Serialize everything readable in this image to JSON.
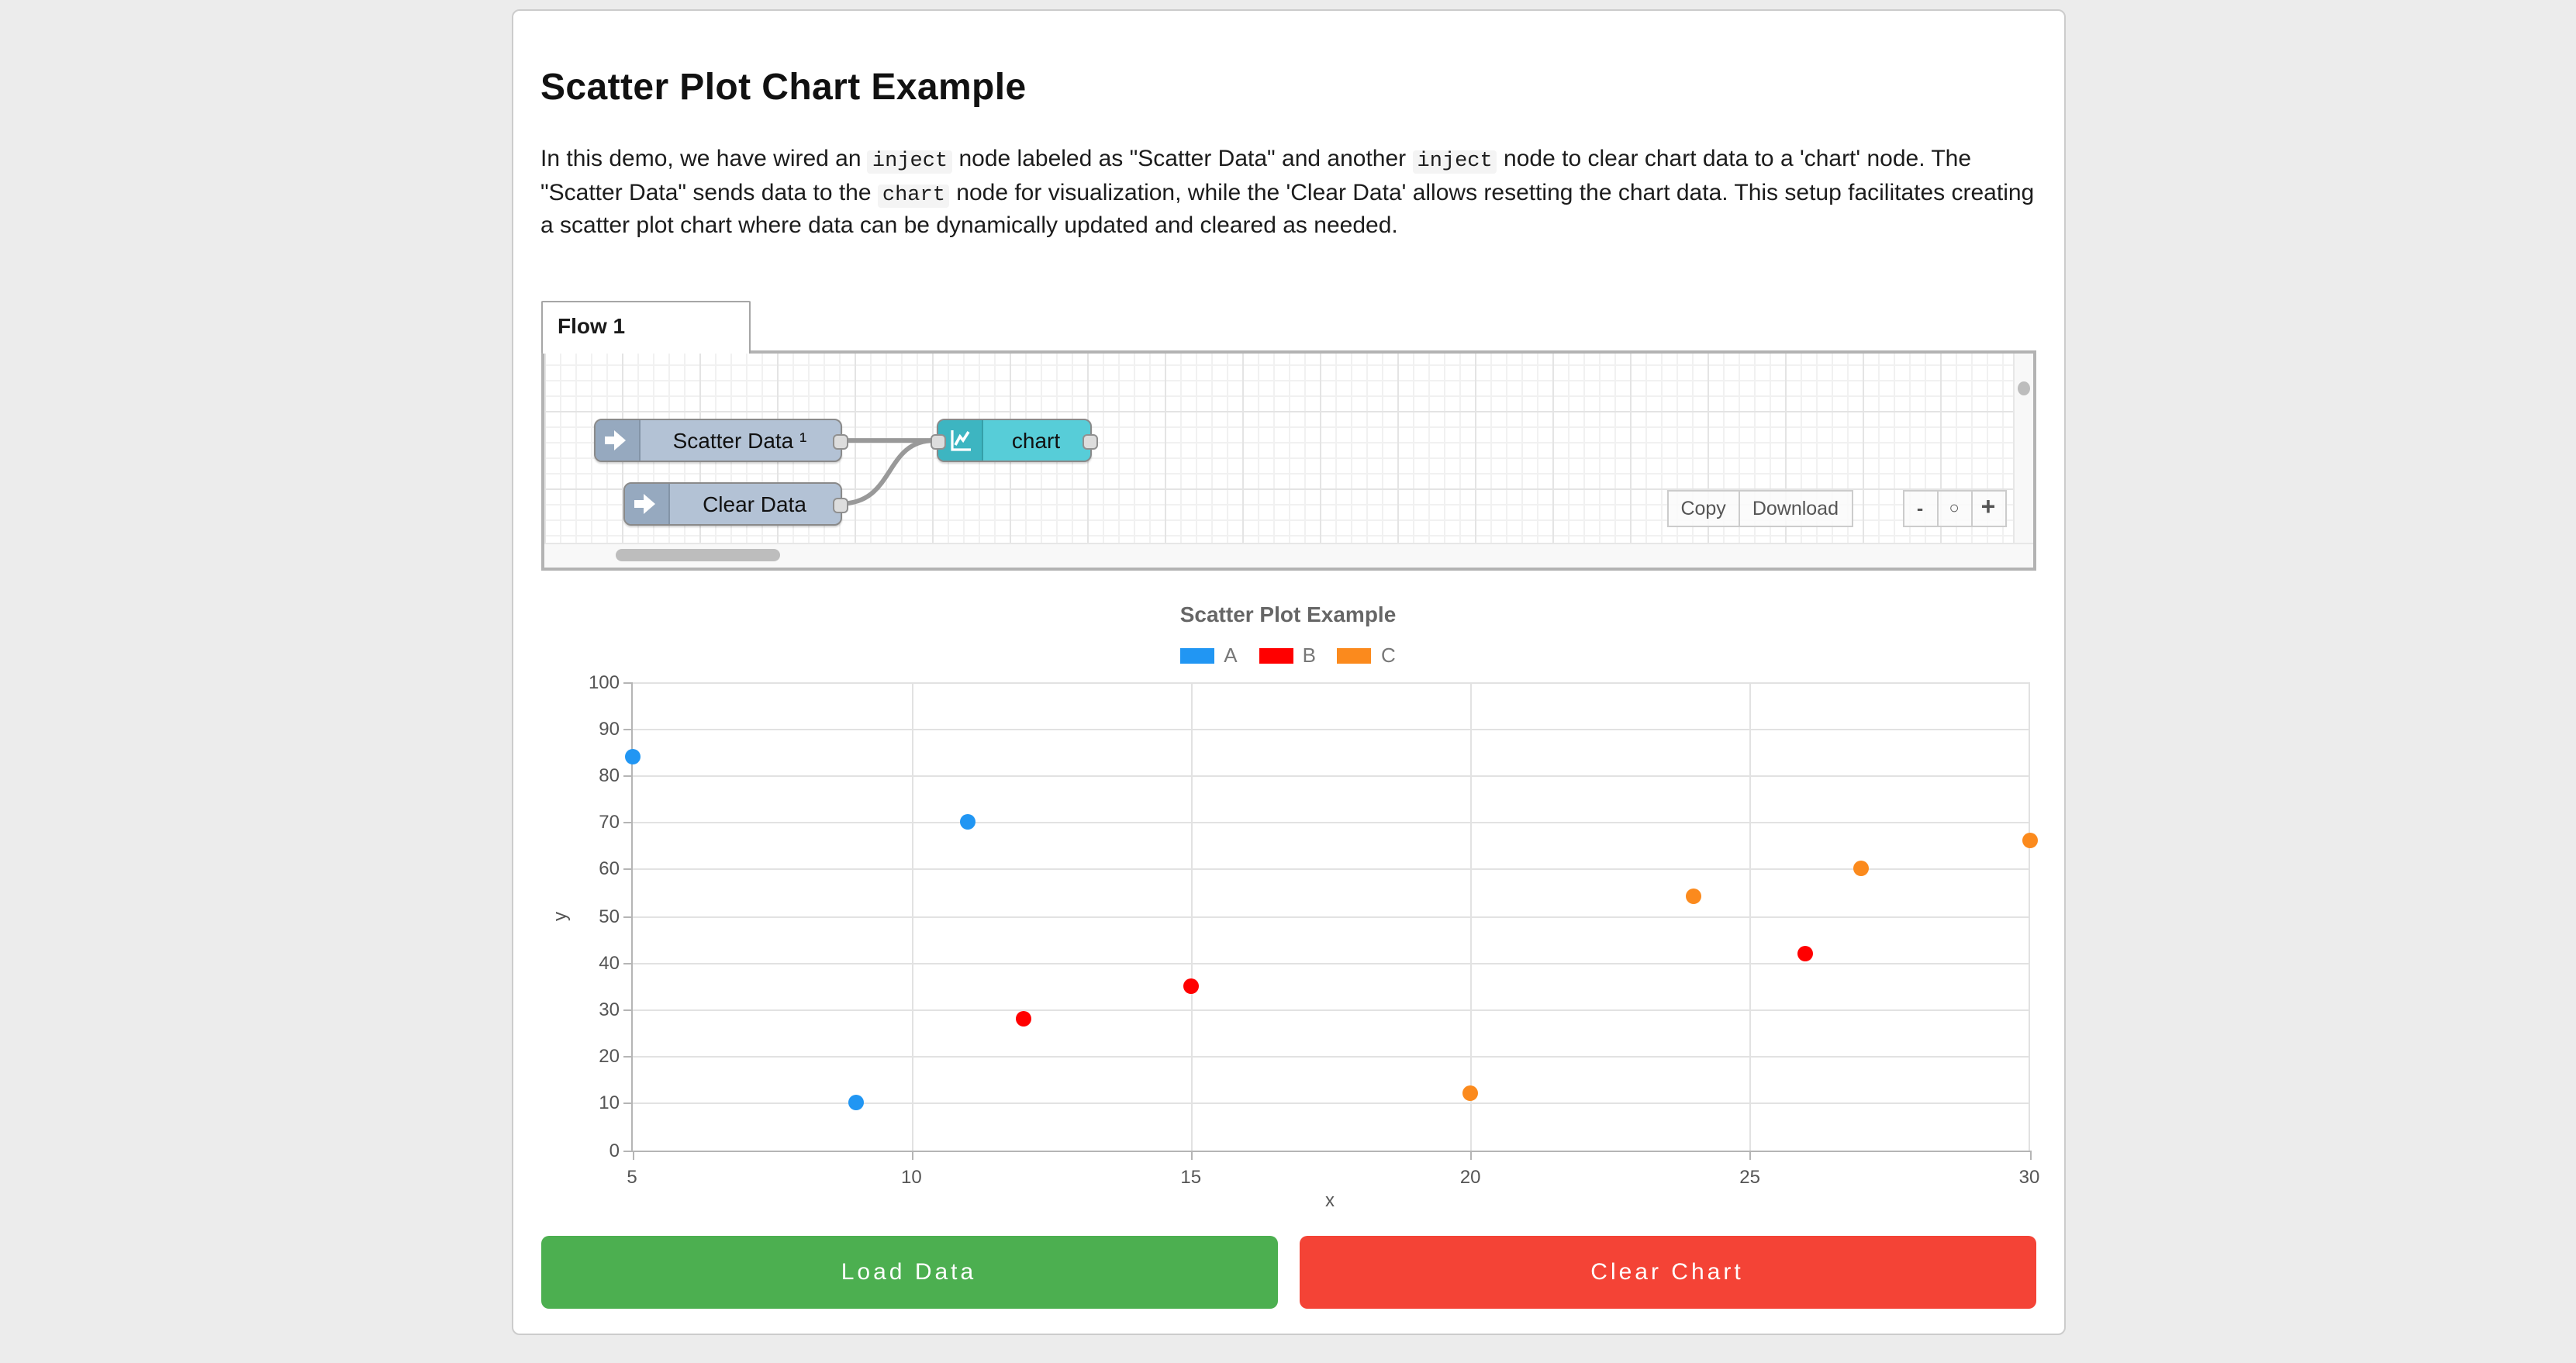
{
  "page": {
    "title": "Scatter Plot Chart Example"
  },
  "description": {
    "segments": [
      {
        "code": false,
        "text": "In this demo, we have wired an "
      },
      {
        "code": true,
        "text": "inject"
      },
      {
        "code": false,
        "text": " node labeled as \"Scatter Data\" and another "
      },
      {
        "code": true,
        "text": "inject"
      },
      {
        "code": false,
        "text": " node to clear chart data to a 'chart' node. The \"Scatter Data\" sends data to the "
      },
      {
        "code": true,
        "text": "chart"
      },
      {
        "code": false,
        "text": " node for visualization, while the 'Clear Data' allows resetting the chart data. This setup facilitates creating a scatter plot chart where data can be dynamically updated and cleared as needed."
      }
    ]
  },
  "flow_editor": {
    "tab_label": "Flow 1",
    "nodes": [
      {
        "label": "Scatter Data ¹",
        "type": "inject",
        "body_color": "#b3c2d5",
        "icon_color": "#96a9bf"
      },
      {
        "label": "Clear Data",
        "type": "inject",
        "body_color": "#b3c2d5",
        "icon_color": "#96a9bf"
      },
      {
        "label": "chart",
        "type": "chart",
        "body_color": "#57cdd8",
        "icon_color": "#3db5c1"
      }
    ],
    "wire_color": "#999999",
    "toolbar": {
      "copy_label": "Copy",
      "download_label": "Download"
    },
    "zoom_controls": {
      "zoom_out": "-",
      "zoom_reset": "○",
      "zoom_in": "+"
    }
  },
  "chart_data": {
    "type": "scatter",
    "title": "Scatter Plot Example",
    "xlabel": "x",
    "ylabel": "y",
    "xlim": [
      5,
      30
    ],
    "ylim": [
      0,
      100
    ],
    "x_ticks": [
      5,
      10,
      15,
      20,
      25,
      30
    ],
    "y_ticks": [
      0,
      10,
      20,
      30,
      40,
      50,
      60,
      70,
      80,
      90,
      100
    ],
    "grid": true,
    "legend_position": "top",
    "series": [
      {
        "name": "A",
        "color": "#2196f3",
        "points": [
          [
            5,
            84
          ],
          [
            9,
            10
          ],
          [
            11,
            70
          ]
        ]
      },
      {
        "name": "B",
        "color": "#ff0000",
        "points": [
          [
            12,
            28
          ],
          [
            15,
            35
          ],
          [
            26,
            42
          ]
        ]
      },
      {
        "name": "C",
        "color": "#fb8a1d",
        "points": [
          [
            20,
            12
          ],
          [
            24,
            54
          ],
          [
            27,
            60
          ],
          [
            30,
            66
          ]
        ]
      }
    ]
  },
  "actions": {
    "load_label": "Load Data",
    "load_color": "#4caf50",
    "clear_label": "Clear Chart",
    "clear_color": "#f44336"
  }
}
